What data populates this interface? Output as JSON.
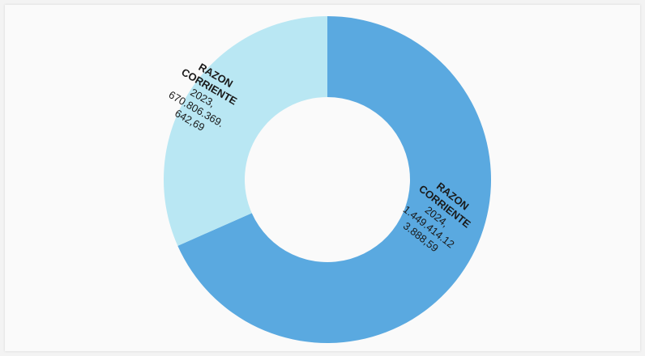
{
  "chart_data": {
    "type": "pie",
    "donut": true,
    "start_angle_deg": 0,
    "direction": "clockwise",
    "legend": "none",
    "slices": [
      {
        "category": "RAZON CORRIENTE",
        "label": "2024",
        "value": 1449414123888.59,
        "value_text": "1.449.414.123.888,59",
        "label_lines": [
          "RAZON",
          "CORRIENTE",
          "2024,",
          "1.449.414.12",
          "3.888,59"
        ],
        "color": "#5aa9e0"
      },
      {
        "category": "RAZON CORRIENTE",
        "label": "2023",
        "value": 670806369642.69,
        "value_text": "670.806.369.642,69",
        "label_lines": [
          "RAZON",
          "CORRIENTE",
          "2023,",
          "670.806.369.",
          "642,69"
        ],
        "color": "#b9e7f3"
      }
    ]
  }
}
